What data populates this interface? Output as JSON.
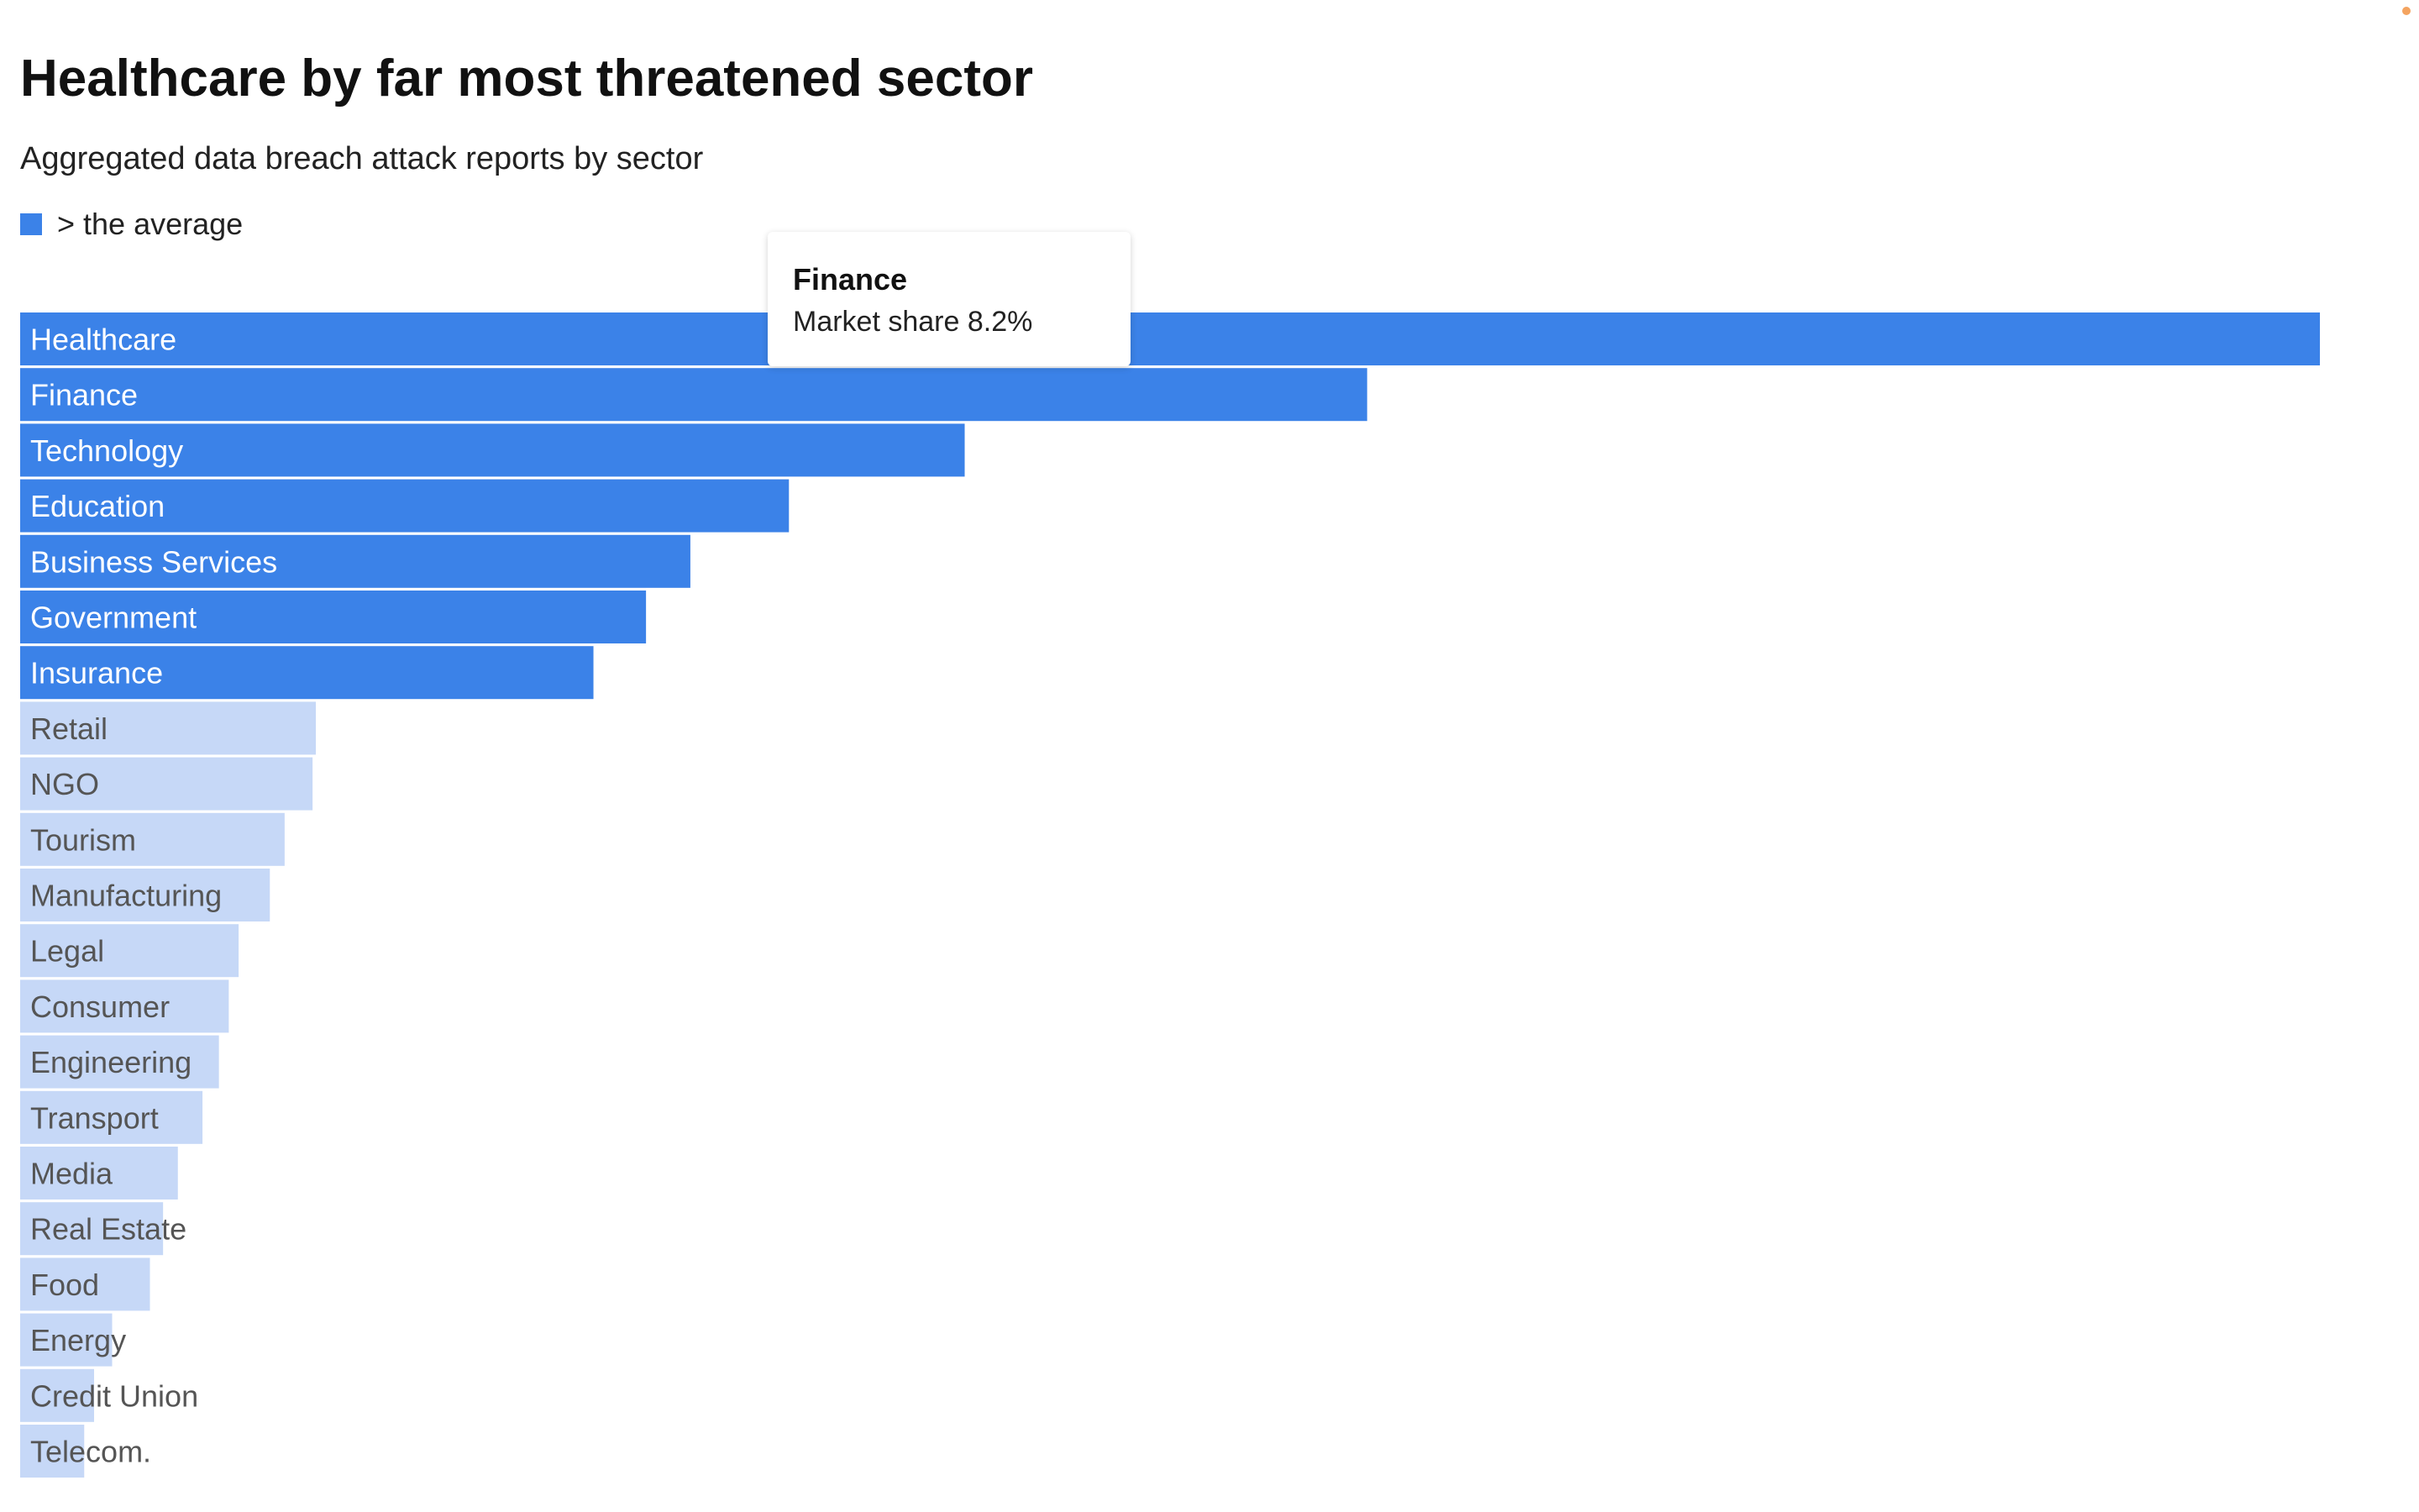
{
  "title": "Healthcare by far most threatened sector",
  "subtitle": "Aggregated data breach attack reports by sector",
  "legend": {
    "label": "> the average",
    "color": "#3b82e8"
  },
  "tooltip": {
    "title": "Finance",
    "body": "Market share 8.2%"
  },
  "colors": {
    "above_average": "#3b82e8",
    "below_average": "#c6d8f7",
    "label_above": "#ffffff",
    "label_below": "#555555",
    "corner_dot": "#f4a460"
  },
  "chart_data": {
    "type": "bar",
    "orientation": "horizontal",
    "title": "Healthcare by far most threatened sector",
    "subtitle": "Aggregated data breach attack reports by sector",
    "categories": [
      "Healthcare",
      "Finance",
      "Technology",
      "Education",
      "Business Services",
      "Government",
      "Insurance",
      "Retail",
      "NGO",
      "Tourism",
      "Manufacturing",
      "Legal",
      "Consumer",
      "Engineering",
      "Transport",
      "Media",
      "Real Estate",
      "Food",
      "Energy",
      "Credit Union",
      "Telecom."
    ],
    "values": [
      14.0,
      8.2,
      5.75,
      4.68,
      4.08,
      3.81,
      3.49,
      1.8,
      1.78,
      1.61,
      1.52,
      1.33,
      1.27,
      1.21,
      1.11,
      0.96,
      0.87,
      0.79,
      0.56,
      0.45,
      0.39
    ],
    "above_average": [
      true,
      true,
      true,
      true,
      true,
      true,
      true,
      false,
      false,
      false,
      false,
      false,
      false,
      false,
      false,
      false,
      false,
      false,
      false,
      false,
      false
    ],
    "unit": "%",
    "xlim": [
      0,
      14.0
    ],
    "grid": false,
    "legend_position": "top-left"
  }
}
